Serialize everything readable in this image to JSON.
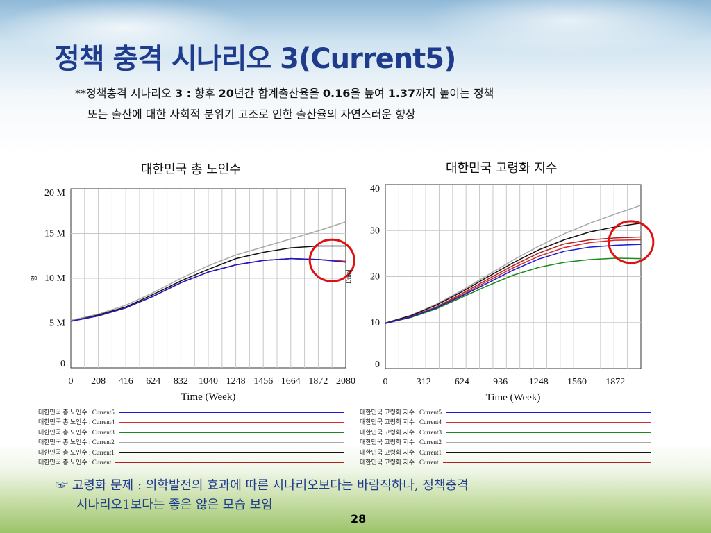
{
  "slide": {
    "title": "정책 충격 시나리오 3(Current5)",
    "subtitle_line1_parts": [
      "**정책충격 시나리오 ",
      "3 :",
      " 향후 ",
      "20",
      "년간 합계출산율을 ",
      "0.16",
      "을 높여 ",
      "1.37",
      "까지 높이는 정책"
    ],
    "subtitle_line2": "또는 출산에 대한 사회적 분위기 고조로 인한 출산율의 자연스러운 향상",
    "note_line1": "☞ 고령화 문제 : 의학발전의 효과에 따른 시나리오보다는 바람직하나, 정책충격",
    "note_line2": "시나리오1보다는 좋은 않은 모습 보임",
    "page_number": "28"
  },
  "colors": {
    "title": "#1f3b8c",
    "Current5": "#1a1ad6",
    "Current4": "#d42a2a",
    "Current3": "#1a8a1a",
    "Current2": "#a8a8a8",
    "Current1": "#111111",
    "Current": "#b02020",
    "highlight_circle": "#e01010"
  },
  "chart_data": [
    {
      "type": "line",
      "title": "대한민국 총 노인수",
      "xlabel": "Time (Week)",
      "ylabel": "명",
      "xlim": [
        0,
        2080
      ],
      "ylim": [
        0,
        20000000
      ],
      "x_ticks": [
        "0",
        "208",
        "416",
        "624",
        "832",
        "1040",
        "1248",
        "1456",
        "1664",
        "1872",
        "2080"
      ],
      "y_ticks": [
        "0",
        "5 M",
        "10 M",
        "15 M",
        "20 M"
      ],
      "grid": true,
      "x": [
        0,
        208,
        416,
        624,
        832,
        1040,
        1248,
        1456,
        1664,
        1872,
        2080
      ],
      "series": [
        {
          "name": "대한민국 총 노인수 : Current5",
          "color_key": "Current5",
          "values": [
            5200000,
            5800000,
            6700000,
            8000000,
            9500000,
            10700000,
            11500000,
            12000000,
            12200000,
            12100000,
            11800000
          ]
        },
        {
          "name": "대한민국 총 노인수 : Current4",
          "color_key": "Current4",
          "values": [
            5200000,
            5800000,
            6700000,
            8000000,
            9500000,
            10700000,
            11500000,
            12000000,
            12200000,
            12100000,
            11900000
          ]
        },
        {
          "name": "대한민국 총 노인수 : Current3",
          "color_key": "Current3",
          "values": [
            5200000,
            5800000,
            6700000,
            8000000,
            9500000,
            10700000,
            11500000,
            12000000,
            12200000,
            12100000,
            11900000
          ]
        },
        {
          "name": "대한민국 총 노인수 : Current2",
          "color_key": "Current2",
          "values": [
            5300000,
            6000000,
            7000000,
            8400000,
            10000000,
            11400000,
            12600000,
            13500000,
            14400000,
            15300000,
            16300000
          ]
        },
        {
          "name": "대한민국 총 노인수 : Current1",
          "color_key": "Current1",
          "values": [
            5200000,
            5900000,
            6800000,
            8200000,
            9700000,
            11000000,
            12200000,
            12900000,
            13400000,
            13600000,
            13600000
          ]
        },
        {
          "name": "대한민국 총 노인수 : Current",
          "color_key": "Current",
          "values": [
            5200000,
            5800000,
            6700000,
            8000000,
            9500000,
            10700000,
            11500000,
            12000000,
            12200000,
            12100000,
            11900000
          ]
        }
      ],
      "highlight": {
        "x": 1976,
        "y": 12000000
      }
    },
    {
      "type": "line",
      "title": "대한민국 고령화 지수",
      "xlabel": "Time (Week)",
      "ylabel": "Dmnl",
      "xlim": [
        0,
        2080
      ],
      "ylim": [
        0,
        40
      ],
      "x_ticks": [
        "0",
        "312",
        "624",
        "936",
        "1248",
        "1560",
        "1872"
      ],
      "x_tick_values": [
        0,
        312,
        624,
        936,
        1248,
        1560,
        1872
      ],
      "y_ticks": [
        "0",
        "10",
        "20",
        "30",
        "40"
      ],
      "grid": true,
      "x": [
        0,
        208,
        416,
        624,
        832,
        1040,
        1248,
        1456,
        1664,
        1872,
        2080
      ],
      "series": [
        {
          "name": "대한민국 고령화 지수 : Current5",
          "color_key": "Current5",
          "values": [
            9.8,
            11.2,
            13.2,
            15.8,
            18.6,
            21.4,
            23.8,
            25.5,
            26.4,
            26.8,
            27.0
          ]
        },
        {
          "name": "대한민국 고령화 지수 : Current4",
          "color_key": "Current4",
          "values": [
            9.8,
            11.2,
            13.3,
            16.0,
            19.0,
            21.9,
            24.4,
            26.3,
            27.4,
            27.9,
            28.0
          ]
        },
        {
          "name": "대한민국 고령화 지수 : Current3",
          "color_key": "Current3",
          "values": [
            9.8,
            11.1,
            13.0,
            15.5,
            18.0,
            20.3,
            22.0,
            23.1,
            23.7,
            24.0,
            23.9
          ]
        },
        {
          "name": "대한민국 고령화 지수 : Current2",
          "color_key": "Current2",
          "values": [
            9.9,
            11.6,
            14.0,
            17.0,
            20.3,
            23.6,
            26.6,
            29.3,
            31.6,
            33.6,
            35.5
          ]
        },
        {
          "name": "대한민국 고령화 지수 : Current1",
          "color_key": "Current1",
          "values": [
            9.9,
            11.5,
            13.8,
            16.7,
            19.9,
            23.0,
            25.8,
            28.0,
            29.7,
            30.8,
            31.6
          ]
        },
        {
          "name": "대한민국 고령화 지수 : Current",
          "color_key": "Current",
          "values": [
            9.8,
            11.3,
            13.4,
            16.3,
            19.4,
            22.4,
            25.1,
            27.1,
            28.0,
            28.4,
            28.6
          ]
        }
      ],
      "highlight": {
        "x": 2000,
        "y": 27.5
      }
    }
  ]
}
